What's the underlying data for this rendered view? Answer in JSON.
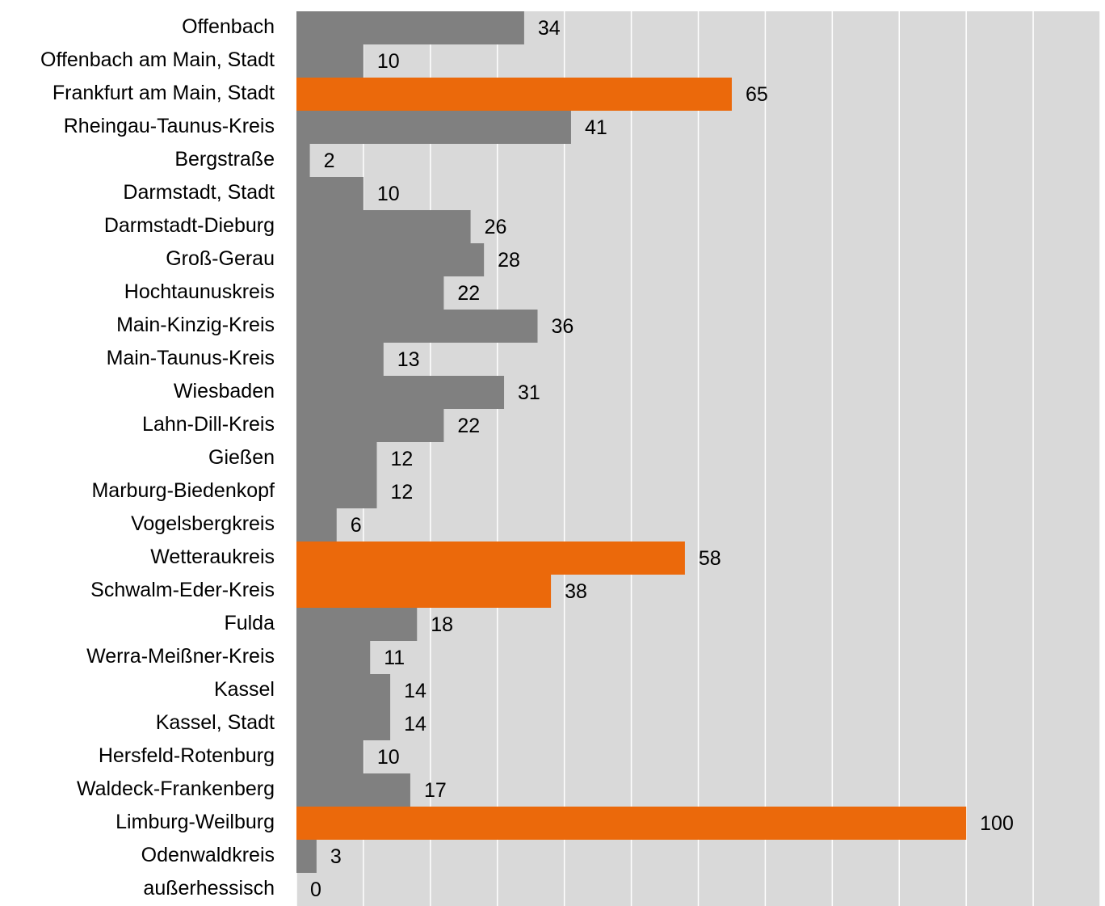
{
  "chart_data": {
    "type": "bar",
    "orientation": "horizontal",
    "categories": [
      "Offenbach",
      "Offenbach am Main, Stadt",
      "Frankfurt am Main, Stadt",
      "Rheingau-Taunus-Kreis",
      "Bergstraße",
      "Darmstadt, Stadt",
      "Darmstadt-Dieburg",
      "Groß-Gerau",
      "Hochtaunuskreis",
      "Main-Kinzig-Kreis",
      "Main-Taunus-Kreis",
      "Wiesbaden",
      "Lahn-Dill-Kreis",
      "Gießen",
      "Marburg-Biedenkopf",
      "Vogelsbergkreis",
      "Wetteraukreis",
      "Schwalm-Eder-Kreis",
      "Fulda",
      "Werra-Meißner-Kreis",
      "Kassel",
      "Kassel, Stadt",
      "Hersfeld-Rotenburg",
      "Waldeck-Frankenberg",
      "Limburg-Weilburg",
      "Odenwaldkreis",
      "außerhessisch"
    ],
    "values": [
      34,
      10,
      65,
      41,
      2,
      10,
      26,
      28,
      22,
      36,
      13,
      31,
      22,
      12,
      12,
      6,
      58,
      38,
      18,
      11,
      14,
      14,
      10,
      17,
      100,
      3,
      0
    ],
    "colors": [
      "#808080",
      "#808080",
      "#eb690b",
      "#808080",
      "#808080",
      "#808080",
      "#808080",
      "#808080",
      "#808080",
      "#808080",
      "#808080",
      "#808080",
      "#808080",
      "#808080",
      "#808080",
      "#808080",
      "#eb690b",
      "#eb690b",
      "#808080",
      "#808080",
      "#808080",
      "#808080",
      "#808080",
      "#808080",
      "#eb690b",
      "#808080",
      "#808080"
    ],
    "xlim": [
      0,
      120
    ],
    "xticks": [
      0,
      10,
      20,
      30,
      40,
      50,
      60,
      70,
      80,
      90,
      100,
      110,
      120
    ],
    "grid": true
  }
}
